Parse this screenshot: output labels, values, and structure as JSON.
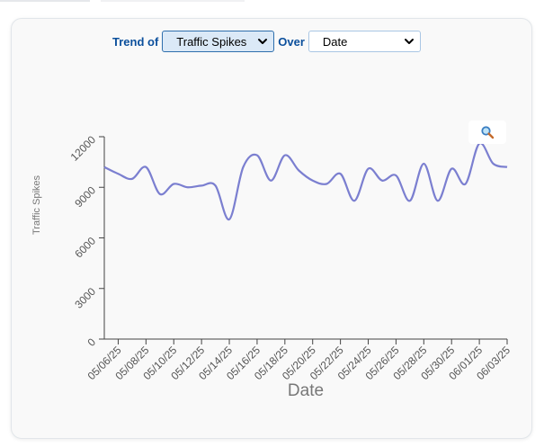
{
  "controls": {
    "trend_label": "Trend of",
    "trend_value": "Traffic Spikes",
    "over_label": "Over",
    "over_value": "Date"
  },
  "icons": {
    "zoom": "magnifier-icon",
    "dropdown": "chevron-down-icon"
  },
  "colors": {
    "line": "#7b7fd0",
    "label_accent": "#0b4f9c"
  },
  "chart_data": {
    "type": "line",
    "xlabel": "Date",
    "ylabel": "Traffic Spikes",
    "ylim": [
      0,
      12000
    ],
    "yticks": [
      0,
      3000,
      6000,
      9000,
      12000
    ],
    "ytick_labels": [
      "0",
      "3000",
      "6000",
      "9000",
      "12000"
    ],
    "xtick_labels": [
      "05/06/25",
      "05/08/25",
      "05/10/25",
      "05/12/25",
      "05/14/25",
      "05/16/25",
      "05/18/25",
      "05/20/25",
      "05/22/25",
      "05/24/25",
      "05/26/25",
      "05/28/25",
      "05/30/25",
      "06/01/25",
      "06/03/25"
    ],
    "grid": false,
    "series": [
      {
        "x": [
          "05/05/25",
          "05/06/25",
          "05/07/25",
          "05/08/25",
          "05/09/25",
          "05/10/25",
          "05/11/25",
          "05/12/25",
          "05/13/25",
          "05/14/25",
          "05/15/25",
          "05/16/25",
          "05/17/25",
          "05/18/25",
          "05/19/25",
          "05/20/25",
          "05/21/25",
          "05/22/25",
          "05/23/25",
          "05/24/25",
          "05/25/25",
          "05/26/25",
          "05/27/25",
          "05/28/25",
          "05/29/25",
          "05/30/25",
          "05/31/25",
          "06/01/25",
          "06/02/25",
          "06/03/25"
        ],
        "values": [
          10200,
          9800,
          9500,
          10200,
          8600,
          9200,
          9000,
          9100,
          9100,
          7100,
          10200,
          10900,
          9400,
          10900,
          10000,
          9400,
          9200,
          9800,
          8200,
          10100,
          9400,
          9700,
          8200,
          10400,
          8200,
          10100,
          9200,
          11600,
          10400,
          10200
        ]
      }
    ]
  }
}
